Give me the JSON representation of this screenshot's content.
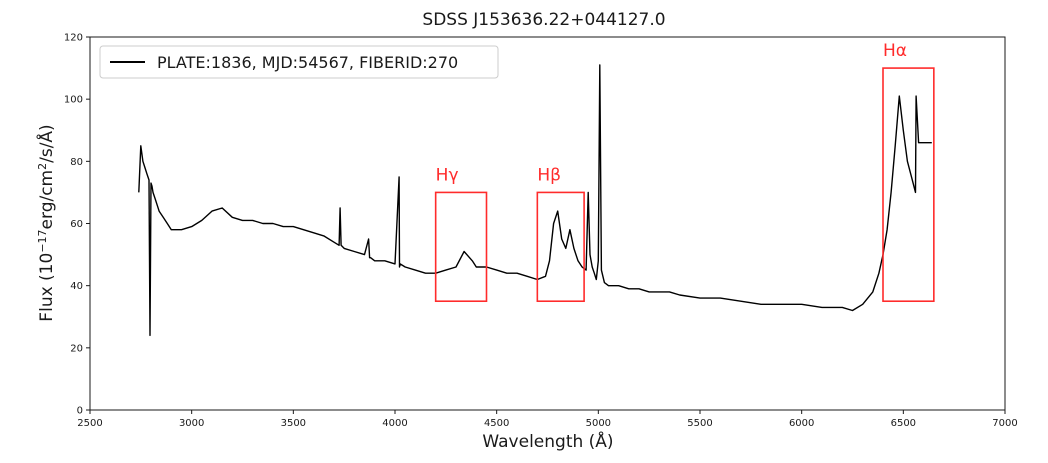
{
  "chart_data": {
    "type": "line",
    "title": "SDSS J153636.22+044127.0",
    "xlabel": "Wavelength (Å)",
    "ylabel_parts": [
      "Flux (10",
      "−17",
      "erg/cm",
      "2",
      "/s/Å)"
    ],
    "xlim": [
      2500,
      7000
    ],
    "ylim": [
      0,
      120
    ],
    "xticks": [
      2500,
      3000,
      3500,
      4000,
      4500,
      5000,
      5500,
      6000,
      6500,
      7000
    ],
    "yticks": [
      0,
      20,
      40,
      60,
      80,
      100,
      120
    ],
    "grid": false,
    "legend_placement": "top-left",
    "series": [
      {
        "name": "PLATE:1836, MJD:54567, FIBERID:270",
        "color": "#000000",
        "x": [
          2740,
          2750,
          2760,
          2770,
          2780,
          2790,
          2795,
          2800,
          2805,
          2810,
          2820,
          2830,
          2840,
          2860,
          2880,
          2900,
          2950,
          3000,
          3050,
          3100,
          3150,
          3200,
          3250,
          3300,
          3350,
          3400,
          3450,
          3500,
          3550,
          3600,
          3650,
          3700,
          3725,
          3730,
          3735,
          3750,
          3800,
          3850,
          3870,
          3875,
          3880,
          3900,
          3950,
          4000,
          4020,
          4022,
          4025,
          4050,
          4100,
          4150,
          4200,
          4250,
          4300,
          4340,
          4380,
          4400,
          4450,
          4500,
          4550,
          4600,
          4650,
          4700,
          4740,
          4760,
          4780,
          4800,
          4820,
          4840,
          4860,
          4880,
          4900,
          4920,
          4940,
          4950,
          4959,
          4970,
          4980,
          4990,
          5000,
          5007,
          5015,
          5030,
          5050,
          5100,
          5150,
          5200,
          5250,
          5300,
          5350,
          5400,
          5500,
          5600,
          5700,
          5800,
          5900,
          6000,
          6100,
          6200,
          6250,
          6300,
          6350,
          6380,
          6400,
          6420,
          6440,
          6460,
          6480,
          6500,
          6520,
          6540,
          6560,
          6563,
          6570,
          6575,
          6580,
          6590,
          6600,
          6620,
          6640
        ],
        "y": [
          70,
          85,
          80,
          78,
          76,
          74,
          24,
          73,
          72,
          70,
          68,
          66,
          64,
          62,
          60,
          58,
          58,
          59,
          61,
          64,
          65,
          62,
          61,
          61,
          60,
          60,
          59,
          59,
          58,
          57,
          56,
          54,
          53,
          65,
          53,
          52,
          51,
          50,
          55,
          49,
          49,
          48,
          48,
          47,
          75,
          46,
          47,
          46,
          45,
          44,
          44,
          45,
          46,
          51,
          48,
          46,
          46,
          45,
          44,
          44,
          43,
          42,
          43,
          48,
          60,
          64,
          55,
          52,
          58,
          52,
          48,
          46,
          45,
          70,
          50,
          46,
          44,
          42,
          48,
          111,
          45,
          41,
          40,
          40,
          39,
          39,
          38,
          38,
          38,
          37,
          36,
          36,
          35,
          34,
          34,
          34,
          33,
          33,
          32,
          34,
          38,
          44,
          50,
          58,
          70,
          85,
          101,
          90,
          80,
          75,
          70,
          101,
          92,
          86,
          86,
          86,
          86,
          86,
          86
        ]
      }
    ],
    "regions": [
      {
        "label": "Hγ",
        "xmin": 4200,
        "xmax": 4450,
        "ymin": 35,
        "ymax": 70
      },
      {
        "label": "Hβ",
        "xmin": 4700,
        "xmax": 4930,
        "ymin": 35,
        "ymax": 70
      },
      {
        "label": "Hα",
        "xmin": 6400,
        "xmax": 6650,
        "ymin": 35,
        "ymax": 110
      }
    ],
    "annotation_color": "#ff2b2b"
  }
}
